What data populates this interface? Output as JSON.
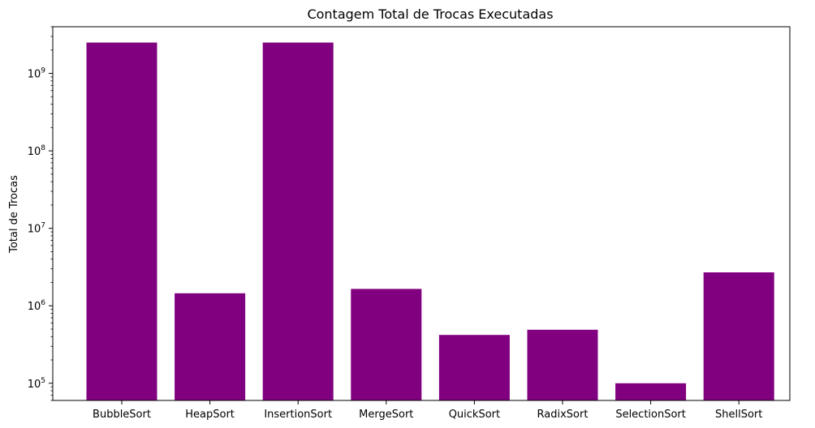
{
  "chart_data": {
    "type": "bar",
    "title": "Contagem Total de Trocas Executadas",
    "xlabel": "",
    "ylabel": "Total de Trocas",
    "yscale": "log",
    "ylim": [
      60000,
      4000000000
    ],
    "ytick_base": "10",
    "ytick_exponents": [
      "5",
      "6",
      "7",
      "8",
      "9"
    ],
    "categories": [
      "BubbleSort",
      "HeapSort",
      "InsertionSort",
      "MergeSort",
      "QuickSort",
      "RadixSort",
      "SelectionSort",
      "ShellSort"
    ],
    "values": [
      2500000000,
      1450000,
      2500000000,
      1650000,
      420000,
      490000,
      100000,
      2700000
    ],
    "bar_color": "#800080",
    "grid": false,
    "legend": "none"
  }
}
